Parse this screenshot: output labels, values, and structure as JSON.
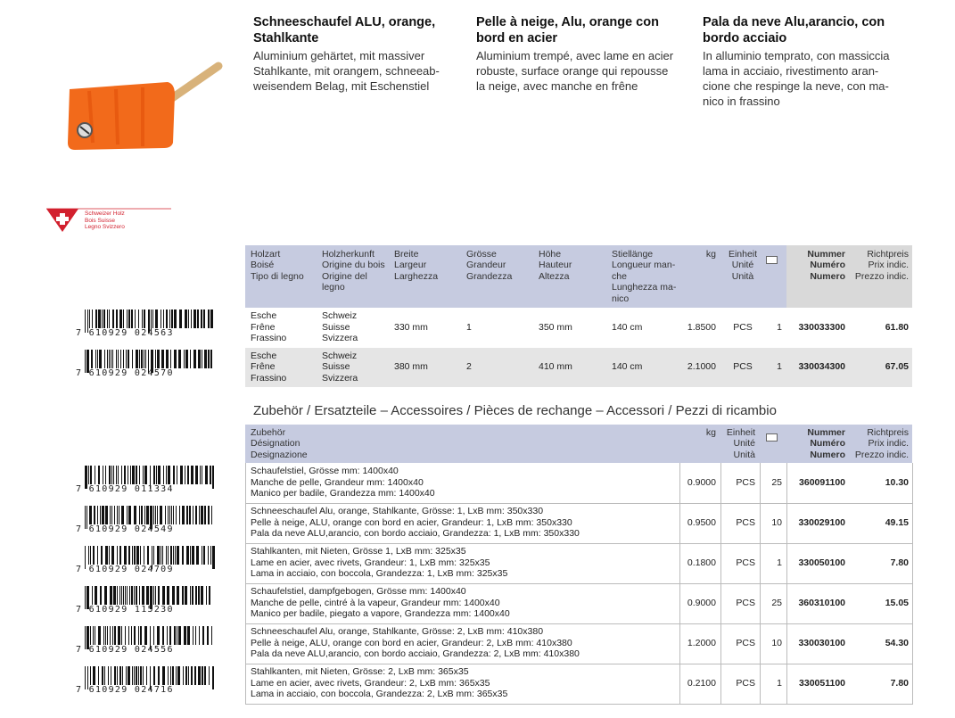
{
  "products": [
    {
      "title": [
        "Schneeschaufel ALU, orange,",
        "Stahlkante"
      ],
      "text": [
        "Aluminium gehärtet, mit massiver",
        "Stahlkante, mit orangem, schneeab-",
        "weisendem Belag, mit Eschenstiel"
      ]
    },
    {
      "title": [
        "Pelle à neige, Alu, orange con",
        "bord en acier"
      ],
      "text": [
        "Aluminium trempé, avec lame en acier",
        "robuste, surface orange qui repousse",
        "la neige, avec manche en frêne"
      ]
    },
    {
      "title": [
        "Pala da neve Alu,arancio, con",
        "bordo acciaio"
      ],
      "text": [
        "In alluminio temprato, con massiccia",
        "lama in acciaio, rivestimento aran-",
        "cione che respinge la neve, con ma-",
        "nico in frassino"
      ]
    }
  ],
  "logo": [
    "Schweizer Holz",
    "Bois Suisse",
    "Legno Svizzero"
  ],
  "table1": {
    "headers": [
      [
        "Holzart",
        "Boisé",
        "Tipo di legno"
      ],
      [
        "Holzherkunft",
        "Origine du bois",
        "Origine del",
        "legno"
      ],
      [
        "Breite",
        "Largeur",
        "Larghezza"
      ],
      [
        "Grösse",
        "Grandeur",
        "Grandezza"
      ],
      [
        "Höhe",
        "Hauteur",
        "Altezza"
      ],
      [
        "Stiellänge",
        "Longueur man-",
        "che",
        "Lunghezza ma-",
        "nico"
      ],
      [
        "kg"
      ],
      [
        "Einheit",
        "Unité",
        "Unità"
      ],
      [
        "Nummer",
        "Numéro",
        "Numero"
      ],
      [
        "Richtpreis",
        "Prix indic.",
        "Prezzo indic."
      ]
    ],
    "rows": [
      {
        "barcode": "7 610929 024563",
        "cells": [
          [
            "Esche",
            "Frêne",
            "Frassino"
          ],
          [
            "Schweiz",
            "Suisse",
            "Svizzera"
          ],
          "330 mm",
          "1",
          "350 mm",
          "140 cm",
          "1.8500",
          "PCS",
          "1",
          "330033300",
          "61.80"
        ]
      },
      {
        "barcode": "7 610929 024570",
        "cells": [
          [
            "Esche",
            "Frêne",
            "Frassino"
          ],
          [
            "Schweiz",
            "Suisse",
            "Svizzera"
          ],
          "380 mm",
          "2",
          "410 mm",
          "140 cm",
          "2.1000",
          "PCS",
          "1",
          "330034300",
          "67.05"
        ]
      }
    ]
  },
  "section_title": "Zubehör / Ersatzteile – Accessoires / Pièces de rechange – Accessori / Pezzi di ricambio",
  "table2": {
    "headers": [
      [
        "Zubehör",
        "Désignation",
        "Designazione"
      ],
      [
        "kg"
      ],
      [
        "Einheit",
        "Unité",
        "Unità"
      ],
      [
        "Nummer",
        "Numéro",
        "Numero"
      ],
      [
        "Richtpreis",
        "Prix indic.",
        "Prezzo indic."
      ]
    ],
    "rows": [
      {
        "barcode": "7 610929 011334",
        "cells": [
          [
            "Schaufelstiel, Grösse mm: 1400x40",
            "Manche de pelle, Grandeur mm: 1400x40",
            "Manico per badile, Grandezza mm: 1400x40"
          ],
          "0.9000",
          "PCS",
          "25",
          "360091100",
          "10.30"
        ]
      },
      {
        "barcode": "7 610929 024549",
        "cells": [
          [
            "Schneeschaufel Alu, orange, Stahlkante, Grösse: 1, LxB mm: 350x330",
            "Pelle à neige, ALU, orange con bord en acier, Grandeur: 1, LxB mm: 350x330",
            "Pala da neve ALU,arancio, con bordo acciaio, Grandezza: 1, LxB mm: 350x330"
          ],
          "0.9500",
          "PCS",
          "10",
          "330029100",
          "49.15"
        ]
      },
      {
        "barcode": "7 610929 024709",
        "cells": [
          [
            "Stahlkanten, mit Nieten, Grösse 1, LxB mm: 325x35",
            "Lame en acier, avec rivets, Grandeur: 1, LxB mm: 325x35",
            "Lama in acciaio, con boccola, Grandezza: 1, LxB mm: 325x35"
          ],
          "0.1800",
          "PCS",
          "1",
          "330050100",
          "7.80"
        ]
      },
      {
        "barcode": "7 610929 115230",
        "cells": [
          [
            "Schaufelstiel, dampfgebogen, Grösse mm: 1400x40",
            "Manche de pelle, cintré à la vapeur, Grandeur mm: 1400x40",
            "Manico per badile, piegato a vapore, Grandezza mm: 1400x40"
          ],
          "0.9000",
          "PCS",
          "25",
          "360310100",
          "15.05"
        ]
      },
      {
        "barcode": "7 610929 024556",
        "cells": [
          [
            "Schneeschaufel Alu, orange, Stahlkante, Grösse: 2, LxB mm: 410x380",
            "Pelle à neige, ALU, orange con bord en acier, Grandeur: 2, LxB mm: 410x380",
            "Pala da neve ALU,arancio, con bordo acciaio, Grandezza: 2, LxB mm: 410x380"
          ],
          "1.2000",
          "PCS",
          "10",
          "330030100",
          "54.30"
        ]
      },
      {
        "barcode": "7 610929 024716",
        "cells": [
          [
            "Stahlkanten, mit Nieten, Grösse: 2, LxB mm: 365x35",
            "Lame en acier, avec rivets, Grandeur: 2, LxB mm: 365x35",
            "Lama in acciaio, con boccola, Grandezza: 2, LxB mm: 365x35"
          ],
          "0.2100",
          "PCS",
          "1",
          "330051100",
          "7.80"
        ]
      }
    ]
  }
}
